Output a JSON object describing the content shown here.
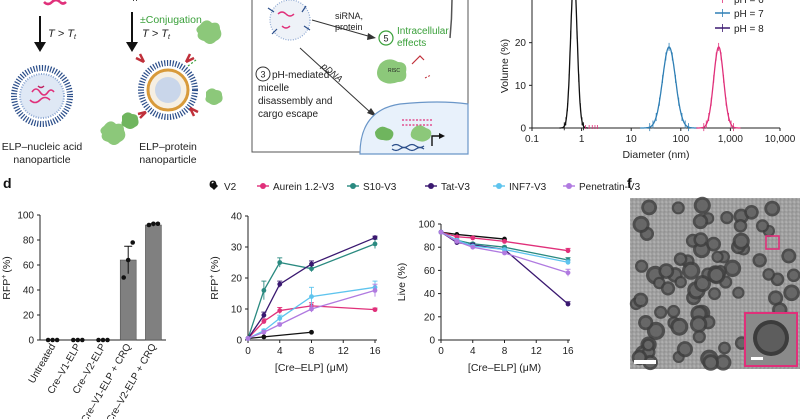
{
  "panel_letters": {
    "d": "d",
    "e": "e",
    "f": "f"
  },
  "schematic": {
    "tt_left": "T > T",
    "tt_left_sub": "t",
    "conj_line1": "±Conjugation,",
    "conj_line2": "T > T",
    "conj_line2_sub": "t",
    "np_left_line1": "ELP–nucleic acid",
    "np_left_line2": "nanoparticle",
    "np_right_line1": "ELP–protein",
    "np_right_line1_dummy": "",
    "np_right_line2": "nanoparticle",
    "step3_num": "3",
    "step3_line1": "pH-mediated",
    "step3_line2": "micelle",
    "step3_line3": "disassembly and",
    "step3_line4": "cargo escape",
    "step5_num": "5",
    "step5_line1": "Intracellular",
    "step5_line2": "effects",
    "sirna_line1": "siRNA,",
    "sirna_line2": "protein",
    "pdna": "pDNA",
    "risc": "RISC"
  },
  "colors": {
    "black": "#111111",
    "pink": "#e0307a",
    "teal": "#2a8a80",
    "purple": "#3a1870",
    "lightblue": "#5ec4ee",
    "lavender": "#b07ae0",
    "blue_ph7": "#2f7fb5",
    "bar": "#808080",
    "green": "#3aa03a"
  },
  "chart_data": [
    {
      "panel": "c",
      "type": "line",
      "xlabel": "Diameter (nm)",
      "ylabel": "Volume (%)",
      "xscale": "log",
      "xlim": [
        0.1,
        10000
      ],
      "ylim": [
        0,
        30
      ],
      "x_ticks": [
        "0.1",
        "1",
        "10",
        "100",
        "1,000",
        "10,000"
      ],
      "y_ticks": [
        "0",
        "10",
        "20"
      ],
      "legend": {
        "placement": "top-right",
        "entries": [
          "pH = 7",
          "pH = 8"
        ],
        "partial_entry": "pH = 6"
      },
      "series": [
        {
          "name": "pH = 6",
          "color": "black",
          "peak_x": 0.7,
          "peak_y": 36,
          "width_log": 0.065
        },
        {
          "name": "pH = 7",
          "color": "blue_ph7",
          "peak_x": 58,
          "peak_y": 19,
          "width_log": 0.13
        },
        {
          "name": "pH = 8",
          "color": "pink",
          "peak_x": 580,
          "peak_y": 19,
          "width_log": 0.1
        }
      ]
    },
    {
      "panel": "d",
      "type": "bar",
      "ylabel": "RFP",
      "ylabel_sup": "+",
      "ylabel_unit": "(%)",
      "ylim": [
        0,
        100
      ],
      "y_ticks": [
        "0",
        "20",
        "40",
        "60",
        "80",
        "100"
      ],
      "categories": [
        "Untreated",
        "Cre–V1-ELP",
        "Cre–V2-ELP",
        "Cre–V1-ELP + CRQ",
        "Cre–V2-ELP + CRQ"
      ],
      "values": [
        0,
        0,
        0,
        64,
        92
      ],
      "errors": [
        0,
        0,
        0,
        11,
        1
      ],
      "points": [
        [
          0,
          0,
          0
        ],
        [
          0,
          0,
          0
        ],
        [
          0,
          0,
          0
        ],
        [
          50,
          64,
          78
        ],
        [
          92,
          93,
          93
        ]
      ]
    },
    {
      "panel": "e-left",
      "type": "line",
      "xlabel": "[Cre–ELP] (μM)",
      "ylabel": "RFP",
      "ylabel_sup": "+",
      "ylabel_unit": "(%)",
      "xlim": [
        0,
        16
      ],
      "ylim": [
        0,
        40
      ],
      "x_ticks": [
        "0",
        "4",
        "8",
        "12",
        "16"
      ],
      "y_ticks": [
        "0",
        "10",
        "20",
        "30",
        "40"
      ],
      "legend": {
        "placement": "top",
        "entries": [
          "V2",
          "Aurein 1.2-V3",
          "S10-V3",
          "Tat-V3",
          "INF7-V3",
          "Penetratin-V3"
        ]
      },
      "series": [
        {
          "name": "V2",
          "color": "black",
          "x": [
            0,
            2,
            8
          ],
          "y": [
            0.5,
            1,
            2.5
          ],
          "err": [
            0,
            0,
            0
          ]
        },
        {
          "name": "Aurein 1.2-V3",
          "color": "pink",
          "x": [
            0,
            2,
            4,
            8,
            16
          ],
          "y": [
            0.5,
            6,
            9.5,
            11,
            9.8
          ],
          "err": [
            0,
            0.8,
            1,
            1,
            0.5
          ]
        },
        {
          "name": "S10-V3",
          "color": "teal",
          "x": [
            0,
            2,
            4,
            8,
            16
          ],
          "y": [
            0.5,
            16,
            25,
            23,
            31
          ],
          "err": [
            0,
            3,
            1.5,
            1,
            1.5
          ]
        },
        {
          "name": "Tat-V3",
          "color": "purple",
          "x": [
            0,
            2,
            4,
            8,
            16
          ],
          "y": [
            0.5,
            8,
            18,
            24.5,
            33
          ],
          "err": [
            0,
            1,
            1,
            1,
            0.5
          ]
        },
        {
          "name": "INF7-V3",
          "color": "lightblue",
          "x": [
            0,
            2,
            4,
            8,
            16
          ],
          "y": [
            0.5,
            3,
            7,
            14,
            17
          ],
          "err": [
            0,
            0.5,
            1,
            3,
            2
          ]
        },
        {
          "name": "Penetratin-V3",
          "color": "lavender",
          "x": [
            0,
            2,
            4,
            8,
            16
          ],
          "y": [
            0.5,
            2.5,
            5,
            10,
            16
          ],
          "err": [
            0,
            0.5,
            0.5,
            1,
            2
          ]
        }
      ]
    },
    {
      "panel": "e-right",
      "type": "line",
      "xlabel": "[Cre–ELP] (μM)",
      "ylabel": "Live (%)",
      "xlim": [
        0,
        16
      ],
      "ylim": [
        0,
        100
      ],
      "x_ticks": [
        "0",
        "4",
        "8",
        "12",
        "16"
      ],
      "y_ticks": [
        "0",
        "20",
        "40",
        "60",
        "80",
        "100"
      ],
      "series": [
        {
          "name": "V2",
          "color": "black",
          "x": [
            0,
            2,
            8
          ],
          "y": [
            93,
            91,
            87
          ],
          "err": [
            0,
            0,
            0
          ]
        },
        {
          "name": "Aurein 1.2-V3",
          "color": "pink",
          "x": [
            0,
            2,
            4,
            8,
            16
          ],
          "y": [
            93,
            89,
            88,
            85,
            77
          ],
          "err": [
            0,
            1,
            1,
            1,
            2
          ]
        },
        {
          "name": "S10-V3",
          "color": "teal",
          "x": [
            0,
            2,
            4,
            8,
            16
          ],
          "y": [
            93,
            86,
            83,
            80,
            69
          ],
          "err": [
            0,
            1,
            1,
            1,
            2
          ]
        },
        {
          "name": "Tat-V3",
          "color": "purple",
          "x": [
            0,
            2,
            4,
            8,
            16
          ],
          "y": [
            93,
            84,
            82,
            78,
            31
          ],
          "err": [
            0,
            1,
            1,
            1,
            2
          ]
        },
        {
          "name": "INF7-V3",
          "color": "lightblue",
          "x": [
            0,
            2,
            4,
            8,
            16
          ],
          "y": [
            93,
            86,
            81,
            78,
            67
          ],
          "err": [
            0,
            1,
            1,
            1,
            2
          ]
        },
        {
          "name": "Penetratin-V3",
          "color": "lavender",
          "x": [
            0,
            2,
            4,
            8,
            16
          ],
          "y": [
            93,
            85,
            80,
            75,
            58
          ],
          "err": [
            0,
            1,
            1,
            1,
            3
          ]
        }
      ]
    }
  ]
}
